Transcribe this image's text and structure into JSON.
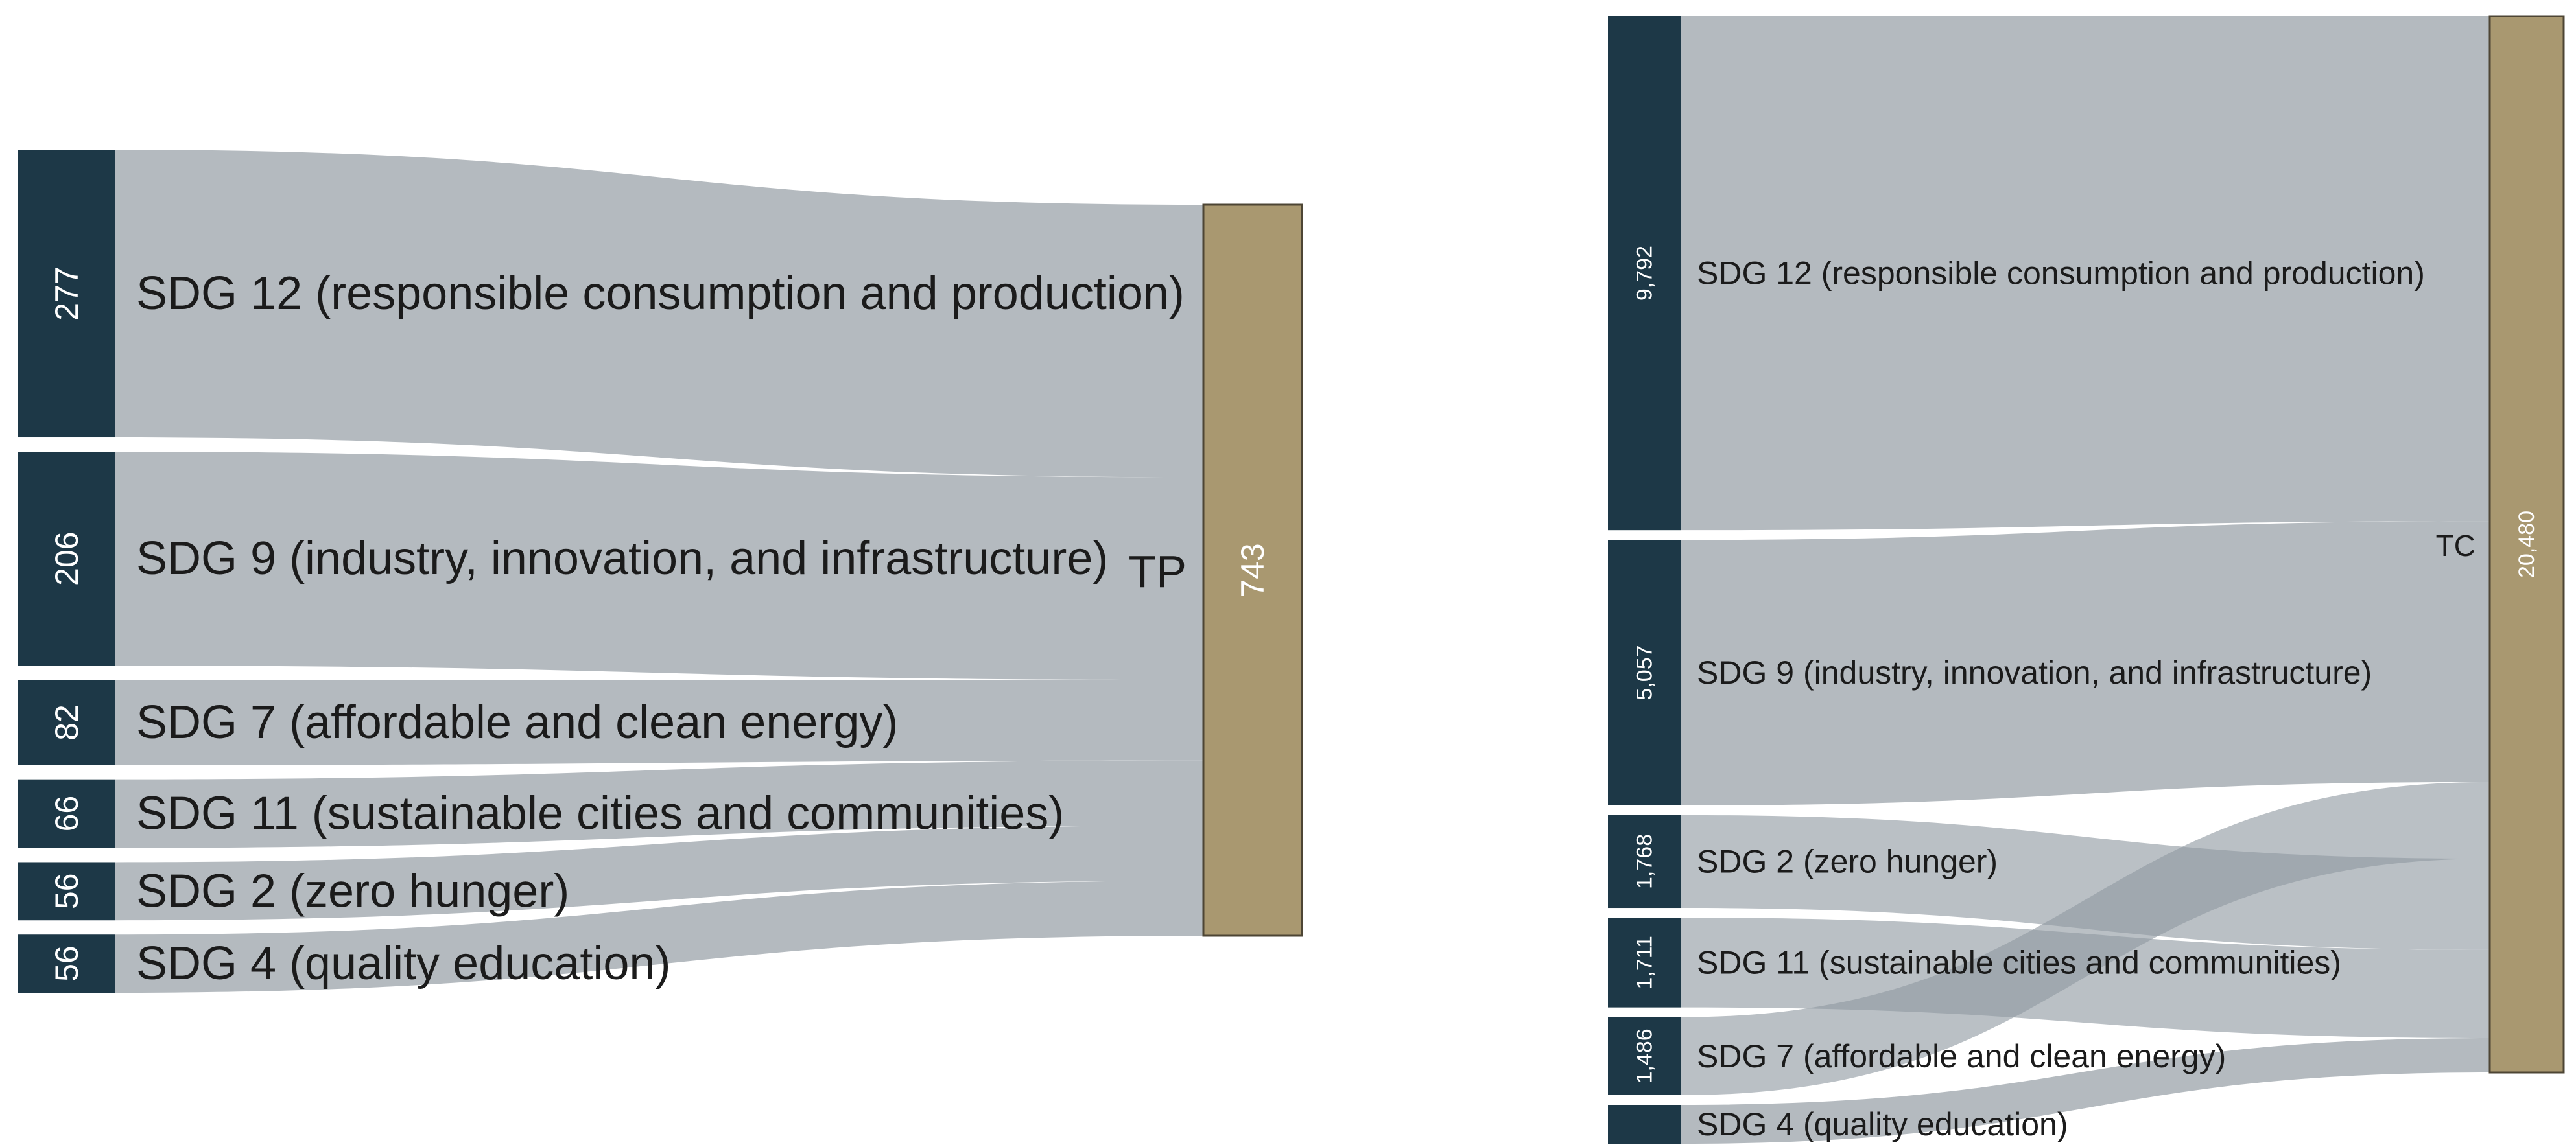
{
  "chart_data": [
    {
      "type": "sankey",
      "target": {
        "label": "TP",
        "value": 743
      },
      "sources": [
        {
          "label": "SDG 12 (responsible consumption and production)",
          "value": 277
        },
        {
          "label": "SDG 9 (industry, innovation, and infrastructure)",
          "value": 206
        },
        {
          "label": "SDG 7 (affordable and clean energy)",
          "value": 82
        },
        {
          "label": "SDG 11 (sustainable cities and communities)",
          "value": 66
        },
        {
          "label": "SDG 2 (zero hunger)",
          "value": 56
        },
        {
          "label": "SDG 4 (quality education)",
          "value": 56
        }
      ],
      "target_order": [
        0,
        1,
        2,
        3,
        4,
        5
      ]
    },
    {
      "type": "sankey",
      "target": {
        "label": "TC",
        "value": 20480
      },
      "sources": [
        {
          "label": "SDG 12 (responsible consumption and production)",
          "value": 9792
        },
        {
          "label": "SDG 9 (industry, innovation, and infrastructure)",
          "value": 5057
        },
        {
          "label": "SDG 2 (zero hunger)",
          "value": 1768
        },
        {
          "label": "SDG 11 (sustainable cities and communities)",
          "value": 1711
        },
        {
          "label": "SDG 7 (affordable and clean energy)",
          "value": 1486
        },
        {
          "label": "SDG 4 (quality education)",
          "value": 666
        }
      ],
      "target_order": [
        0,
        1,
        4,
        2,
        3,
        5
      ],
      "value_labels_shown": [
        true,
        true,
        true,
        true,
        true,
        false
      ]
    }
  ],
  "colors": {
    "source_node": "#1d3847",
    "target_node": "#a99870",
    "flow": "#b4babf"
  }
}
